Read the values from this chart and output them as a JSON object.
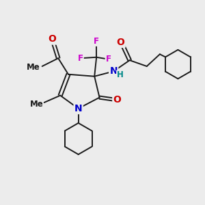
{
  "bg_color": "#ececec",
  "bond_color": "#1a1a1a",
  "atom_colors": {
    "N": "#0000cc",
    "O": "#cc0000",
    "F": "#cc00cc",
    "H": "#008888",
    "C": "#1a1a1a"
  },
  "bond_lw": 1.4,
  "font_size_atom": 10,
  "font_size_small": 8.5,
  "xlim": [
    0,
    10
  ],
  "ylim": [
    0,
    10
  ]
}
